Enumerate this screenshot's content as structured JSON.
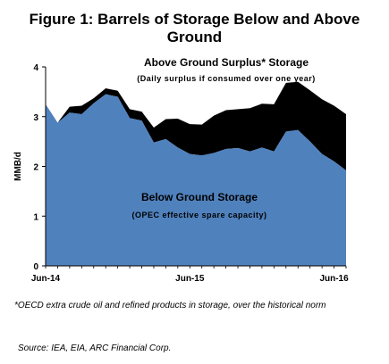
{
  "chart_data": {
    "type": "area",
    "title": "Figure 1: Barrels of Storage Below and Above Ground",
    "ylabel": "MMB/d",
    "xlabel": "",
    "ylim": [
      0,
      4
    ],
    "yticks": [
      "0",
      "1",
      "2",
      "3",
      "4"
    ],
    "xticks": [
      "Jun-14",
      "Jun-15",
      "Jun-16"
    ],
    "x": [
      "Jun-14",
      "Jul-14",
      "Aug-14",
      "Sep-14",
      "Oct-14",
      "Nov-14",
      "Dec-14",
      "Jan-15",
      "Feb-15",
      "Mar-15",
      "Apr-15",
      "May-15",
      "Jun-15",
      "Jul-15",
      "Aug-15",
      "Sep-15",
      "Oct-15",
      "Nov-15",
      "Dec-15",
      "Jan-16",
      "Feb-16",
      "Mar-16",
      "Apr-16",
      "May-16",
      "Jun-16",
      "Jul-16"
    ],
    "series": [
      {
        "name": "Below Ground Storage",
        "sublabel": "(OPEC effective spare capacity)",
        "color": "#4f81bd",
        "values": [
          3.25,
          2.88,
          3.08,
          3.05,
          3.27,
          3.45,
          3.4,
          2.97,
          2.92,
          2.48,
          2.55,
          2.38,
          2.25,
          2.22,
          2.27,
          2.35,
          2.37,
          2.3,
          2.38,
          2.3,
          2.7,
          2.73,
          2.5,
          2.25,
          2.1,
          1.92
        ]
      },
      {
        "name": "Above Ground Surplus* Storage",
        "sublabel": "(Daily surplus if consumed over one year)",
        "color": "#000000",
        "values": [
          0.0,
          0.0,
          0.12,
          0.17,
          0.1,
          0.12,
          0.12,
          0.18,
          0.18,
          0.3,
          0.4,
          0.58,
          0.6,
          0.62,
          0.75,
          0.78,
          0.78,
          0.87,
          0.88,
          0.95,
          0.98,
          0.97,
          1.03,
          1.1,
          1.12,
          1.13
        ]
      }
    ]
  },
  "footnote": "*OECD extra crude oil and refined products in storage, over the historical norm",
  "source": "Source: IEA, EIA, ARC Financial Corp."
}
